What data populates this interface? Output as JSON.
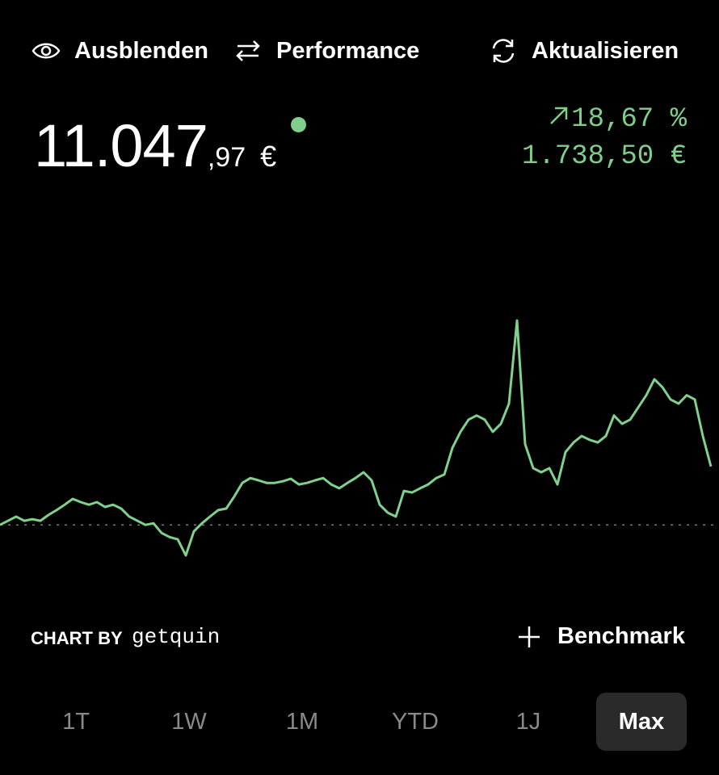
{
  "header": {
    "hide": "Ausblenden",
    "performance": "Performance",
    "refresh": "Aktualisieren"
  },
  "portfolio": {
    "value_main": "11.047",
    "value_decimals": ",97",
    "currency": "€",
    "change_percent": "18,67 %",
    "change_amount": "1.738,50 €"
  },
  "chart_data": {
    "type": "line",
    "color": "#7fd18b",
    "values": [
      9230,
      9360,
      9490,
      9360,
      9410,
      9360,
      9540,
      9690,
      9860,
      10040,
      9940,
      9860,
      9940,
      9790,
      9860,
      9740,
      9490,
      9360,
      9230,
      9280,
      8980,
      8850,
      8780,
      8280,
      9030,
      9280,
      9490,
      9690,
      9740,
      10120,
      10540,
      10690,
      10620,
      10540,
      10540,
      10590,
      10670,
      10490,
      10540,
      10620,
      10690,
      10490,
      10370,
      10540,
      10690,
      10870,
      10620,
      9860,
      9610,
      9490,
      10290,
      10240,
      10370,
      10490,
      10690,
      10800,
      11630,
      12130,
      12510,
      12640,
      12510,
      12130,
      12380,
      13010,
      15600,
      11750,
      11000,
      10870,
      11000,
      10490,
      11500,
      11800,
      12000,
      11880,
      11800,
      12000,
      12640,
      12380,
      12510,
      12890,
      13270,
      13770,
      13520,
      13140,
      13010,
      13270,
      13140,
      12000,
      11050
    ]
  },
  "footer": {
    "chart_by": "CHART BY",
    "brand": "getquin",
    "benchmark": "Benchmark"
  },
  "periods": [
    "1T",
    "1W",
    "1M",
    "YTD",
    "1J",
    "Max"
  ],
  "active_period": 5
}
